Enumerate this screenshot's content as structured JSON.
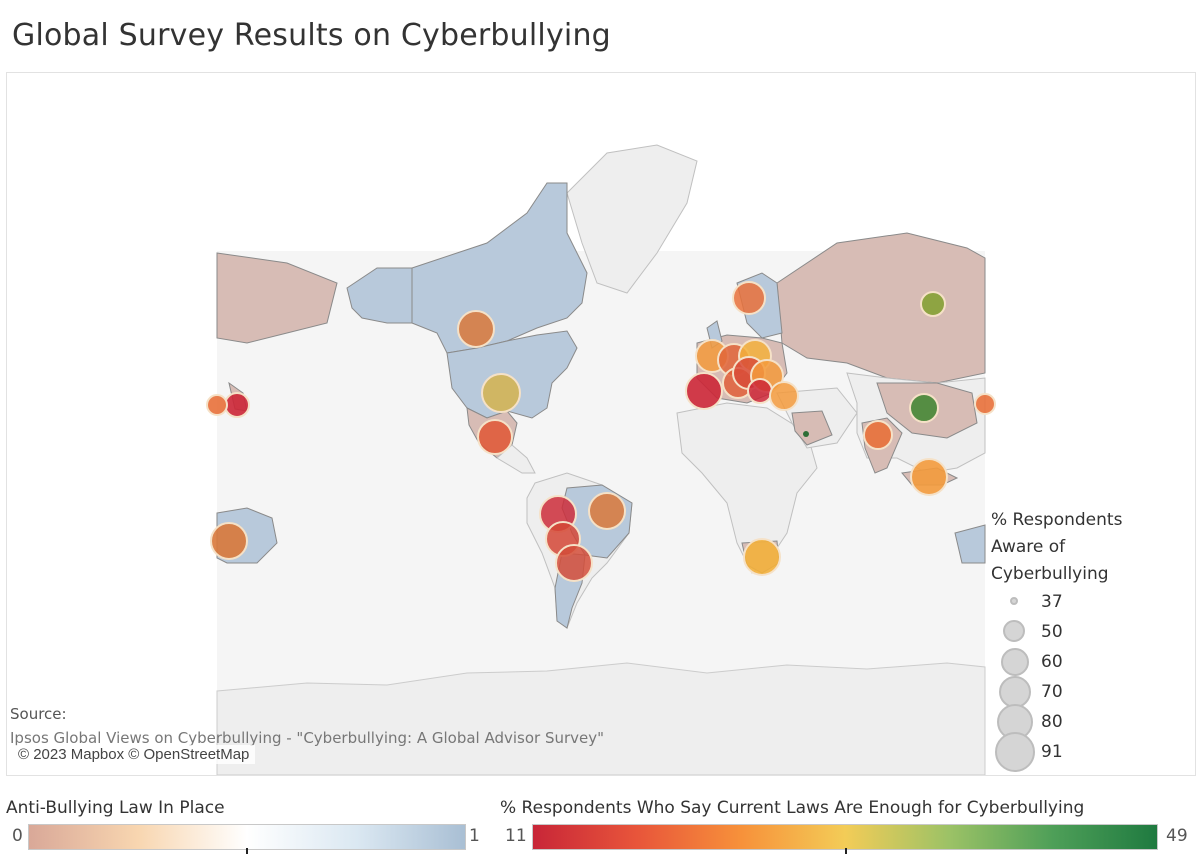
{
  "title": "Global Survey Results on Cyberbullying",
  "source": {
    "label": "Source:",
    "text": "Ipsos Global Views on Cyberbullying - \"Cyberbullying: A Global Advisor Survey\""
  },
  "attribution": "© 2023 Mapbox © OpenStreetMap",
  "size_legend": {
    "title_lines": [
      "% Respondents",
      "Aware of",
      "Cyberbullying"
    ],
    "values": [
      "37",
      "50",
      "60",
      "70",
      "80",
      "91"
    ]
  },
  "law_legend": {
    "title": "Anti-Bullying Law In Place",
    "min": "0",
    "max": "1",
    "colors": [
      "#d9a898",
      "#f8d6b0",
      "#ffffff",
      "#dbe8f2",
      "#a9bfd4"
    ]
  },
  "laws_legend": {
    "title": "% Respondents Who Say Current Laws Are Enough for Cyberbullying",
    "min": "11",
    "max": "49",
    "colors": [
      "#c82638",
      "#e8553a",
      "#f7913a",
      "#f3cc57",
      "#9cc266",
      "#4e9f58",
      "#1f7a40"
    ]
  },
  "map_colors": {
    "ocean": "#ffffff",
    "no_data": "#eeeeee",
    "law_no": "#d7bcb5",
    "law_yes": "#b8c9db",
    "border": "#8a8a8a"
  }
}
